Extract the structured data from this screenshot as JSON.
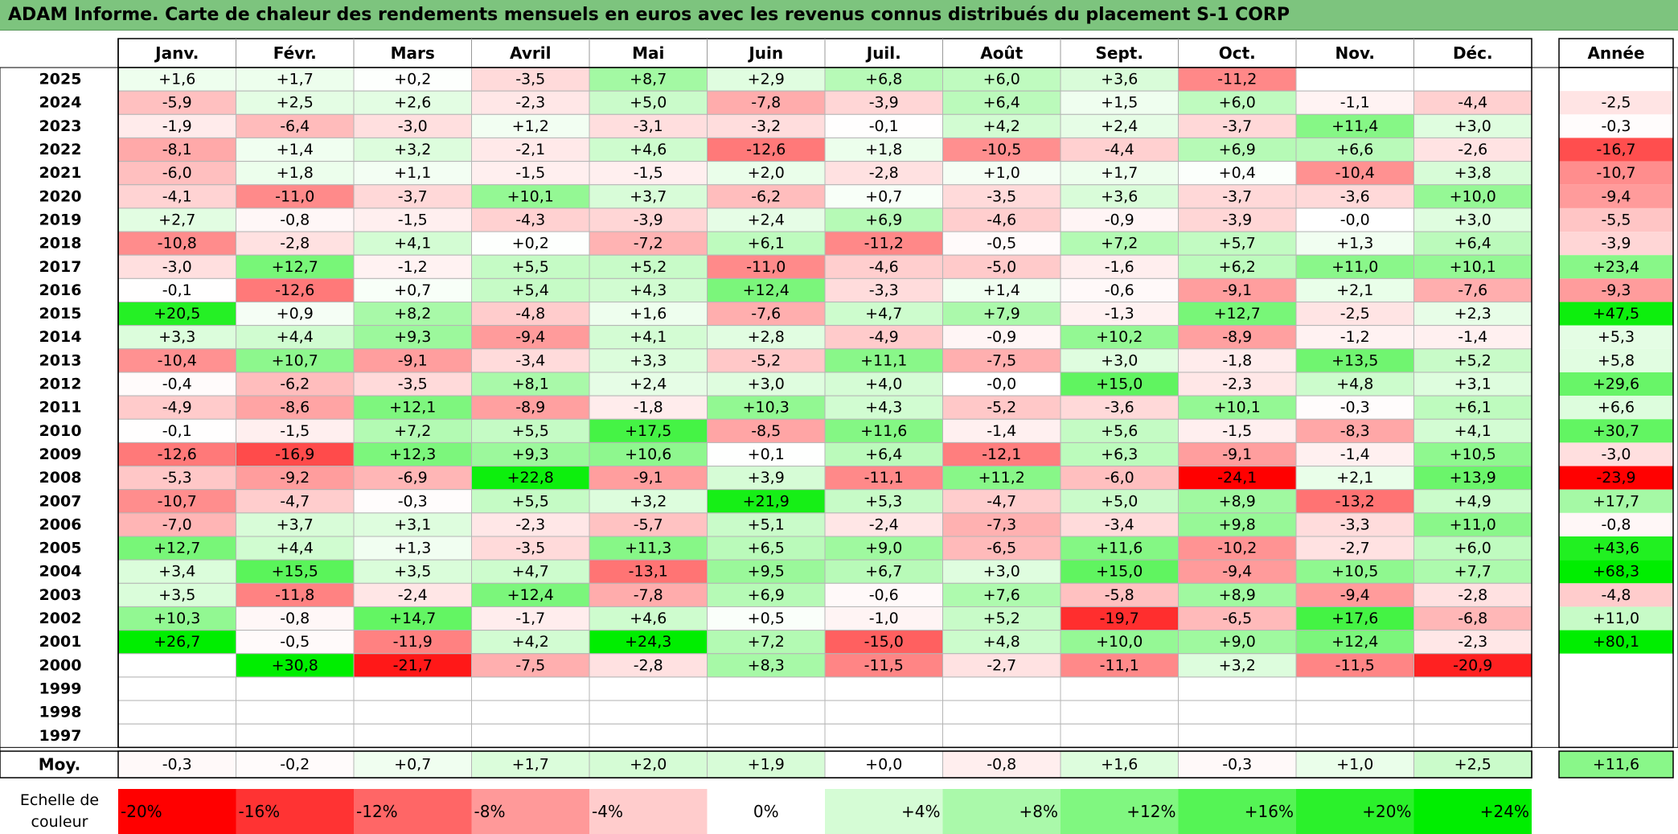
{
  "title": "ADAM Informe. Carte de chaleur des rendements mensuels en euros avec les revenus connus distribués du placement S-1 CORP",
  "chart_data": {
    "type": "heatmap",
    "months": [
      "Janv.",
      "Févr.",
      "Mars",
      "Avril",
      "Mai",
      "Juin",
      "Juil.",
      "Août",
      "Sept.",
      "Oct.",
      "Nov.",
      "Déc."
    ],
    "year_label": "Année",
    "years": [
      "2025",
      "2024",
      "2023",
      "2022",
      "2021",
      "2020",
      "2019",
      "2018",
      "2017",
      "2016",
      "2015",
      "2014",
      "2013",
      "2012",
      "2011",
      "2010",
      "2009",
      "2008",
      "2007",
      "2006",
      "2005",
      "2004",
      "2003",
      "2002",
      "2001",
      "2000",
      "1999",
      "1998",
      "1997"
    ],
    "values": [
      [
        "+1,6",
        "+1,7",
        "+0,2",
        "-3,5",
        "+8,7",
        "+2,9",
        "+6,8",
        "+6,0",
        "+3,6",
        "-11,2",
        "",
        ""
      ],
      [
        "-5,9",
        "+2,5",
        "+2,6",
        "-2,3",
        "+5,0",
        "-7,8",
        "-3,9",
        "+6,4",
        "+1,5",
        "+6,0",
        "-1,1",
        "-4,4"
      ],
      [
        "-1,9",
        "-6,4",
        "-3,0",
        "+1,2",
        "-3,1",
        "-3,2",
        "-0,1",
        "+4,2",
        "+2,4",
        "-3,7",
        "+11,4",
        "+3,0"
      ],
      [
        "-8,1",
        "+1,4",
        "+3,2",
        "-2,1",
        "+4,6",
        "-12,6",
        "+1,8",
        "-10,5",
        "-4,4",
        "+6,9",
        "+6,6",
        "-2,6"
      ],
      [
        "-6,0",
        "+1,8",
        "+1,1",
        "-1,5",
        "-1,5",
        "+2,0",
        "-2,8",
        "+1,0",
        "+1,7",
        "+0,4",
        "-10,4",
        "+3,8"
      ],
      [
        "-4,1",
        "-11,0",
        "-3,7",
        "+10,1",
        "+3,7",
        "-6,2",
        "+0,7",
        "-3,5",
        "+3,6",
        "-3,7",
        "-3,6",
        "+10,0"
      ],
      [
        "+2,7",
        "-0,8",
        "-1,5",
        "-4,3",
        "-3,9",
        "+2,4",
        "+6,9",
        "-4,6",
        "-0,9",
        "-3,9",
        "-0,0",
        "+3,0"
      ],
      [
        "-10,8",
        "-2,8",
        "+4,1",
        "+0,2",
        "-7,2",
        "+6,1",
        "-11,2",
        "-0,5",
        "+7,2",
        "+5,7",
        "+1,3",
        "+6,4"
      ],
      [
        "-3,0",
        "+12,7",
        "-1,2",
        "+5,5",
        "+5,2",
        "-11,0",
        "-4,6",
        "-5,0",
        "-1,6",
        "+6,2",
        "+11,0",
        "+10,1"
      ],
      [
        "-0,1",
        "-12,6",
        "+0,7",
        "+5,4",
        "+4,3",
        "+12,4",
        "-3,3",
        "+1,4",
        "-0,6",
        "-9,1",
        "+2,1",
        "-7,6"
      ],
      [
        "+20,5",
        "+0,9",
        "+8,2",
        "-4,8",
        "+1,6",
        "-7,6",
        "+4,7",
        "+7,9",
        "-1,3",
        "+12,7",
        "-2,5",
        "+2,3"
      ],
      [
        "+3,3",
        "+4,4",
        "+9,3",
        "-9,4",
        "+4,1",
        "+2,8",
        "-4,9",
        "-0,9",
        "+10,2",
        "-8,9",
        "-1,2",
        "-1,4"
      ],
      [
        "-10,4",
        "+10,7",
        "-9,1",
        "-3,4",
        "+3,3",
        "-5,2",
        "+11,1",
        "-7,5",
        "+3,0",
        "-1,8",
        "+13,5",
        "+5,2"
      ],
      [
        "-0,4",
        "-6,2",
        "-3,5",
        "+8,1",
        "+2,4",
        "+3,0",
        "+4,0",
        "-0,0",
        "+15,0",
        "-2,3",
        "+4,8",
        "+3,1"
      ],
      [
        "-4,9",
        "-8,6",
        "+12,1",
        "-8,9",
        "-1,8",
        "+10,3",
        "+4,3",
        "-5,2",
        "-3,6",
        "+10,1",
        "-0,3",
        "+6,1"
      ],
      [
        "-0,1",
        "-1,5",
        "+7,2",
        "+5,5",
        "+17,5",
        "-8,5",
        "+11,6",
        "-1,4",
        "+5,6",
        "-1,5",
        "-8,3",
        "+4,1"
      ],
      [
        "-12,6",
        "-16,9",
        "+12,3",
        "+9,3",
        "+10,6",
        "+0,1",
        "+6,4",
        "-12,1",
        "+6,3",
        "-9,1",
        "-1,4",
        "+10,5"
      ],
      [
        "-5,3",
        "-9,2",
        "-6,9",
        "+22,8",
        "-9,1",
        "+3,9",
        "-11,1",
        "+11,2",
        "-6,0",
        "-24,1",
        "+2,1",
        "+13,9"
      ],
      [
        "-10,7",
        "-4,7",
        "-0,3",
        "+5,5",
        "+3,2",
        "+21,9",
        "+5,3",
        "-4,7",
        "+5,0",
        "+8,9",
        "-13,2",
        "+4,9"
      ],
      [
        "-7,0",
        "+3,7",
        "+3,1",
        "-2,3",
        "-5,7",
        "+5,1",
        "-2,4",
        "-7,3",
        "-3,4",
        "+9,8",
        "-3,3",
        "+11,0"
      ],
      [
        "+12,7",
        "+4,4",
        "+1,3",
        "-3,5",
        "+11,3",
        "+6,5",
        "+9,0",
        "-6,5",
        "+11,6",
        "-10,2",
        "-2,7",
        "+6,0"
      ],
      [
        "+3,4",
        "+15,5",
        "+3,5",
        "+4,7",
        "-13,1",
        "+9,5",
        "+6,7",
        "+3,0",
        "+15,0",
        "-9,4",
        "+10,5",
        "+7,7"
      ],
      [
        "+3,5",
        "-11,8",
        "-2,4",
        "+12,4",
        "-7,8",
        "+6,9",
        "-0,6",
        "+7,6",
        "-5,8",
        "+8,9",
        "-9,4",
        "-2,8"
      ],
      [
        "+10,3",
        "-0,8",
        "+14,7",
        "-1,7",
        "+4,6",
        "+0,5",
        "-1,0",
        "+5,2",
        "-19,7",
        "-6,5",
        "+17,6",
        "-6,8"
      ],
      [
        "+26,7",
        "-0,5",
        "-11,9",
        "+4,2",
        "+24,3",
        "+7,2",
        "-15,0",
        "+4,8",
        "+10,0",
        "+9,0",
        "+12,4",
        "-2,3"
      ],
      [
        "",
        "+30,8",
        "-21,7",
        "-7,5",
        "-2,8",
        "+8,3",
        "-11,5",
        "-2,7",
        "-11,1",
        "+3,2",
        "-11,5",
        "-20,9"
      ],
      [
        "",
        "",
        "",
        "",
        "",
        "",
        "",
        "",
        "",
        "",
        "",
        ""
      ],
      [
        "",
        "",
        "",
        "",
        "",
        "",
        "",
        "",
        "",
        "",
        "",
        ""
      ],
      [
        "",
        "",
        "",
        "",
        "",
        "",
        "",
        "",
        "",
        "",
        "",
        ""
      ]
    ],
    "annual": [
      "",
      "-2,5",
      "-0,3",
      "-16,7",
      "-10,7",
      "-9,4",
      "-5,5",
      "-3,9",
      "+23,4",
      "-9,3",
      "+47,5",
      "+5,3",
      "+5,8",
      "+29,6",
      "+6,6",
      "+30,7",
      "-3,0",
      "-23,9",
      "+17,7",
      "-0,8",
      "+43,6",
      "+68,3",
      "-4,8",
      "+11,0",
      "+80,1",
      "",
      "",
      "",
      ""
    ],
    "avg_label": "Moy.",
    "averages": [
      "-0,3",
      "-0,2",
      "+0,7",
      "+1,7",
      "+2,0",
      "+1,9",
      "+0,0",
      "-0,8",
      "+1,6",
      "-0,3",
      "+1,0",
      "+2,5"
    ],
    "avg_annual": "+11,6",
    "scale_label": [
      "Echelle de",
      "couleur"
    ],
    "scale_values": [
      "-20%",
      "-16%",
      "-12%",
      "-8%",
      "-4%",
      "0%",
      "+4%",
      "+8%",
      "+12%",
      "+16%",
      "+20%",
      "+24%"
    ],
    "colors": {
      "neg_max": "#ff0000",
      "pos_max": "#00ee00",
      "neutral": "#ffffff",
      "title_bg": "#7dc47e"
    }
  }
}
